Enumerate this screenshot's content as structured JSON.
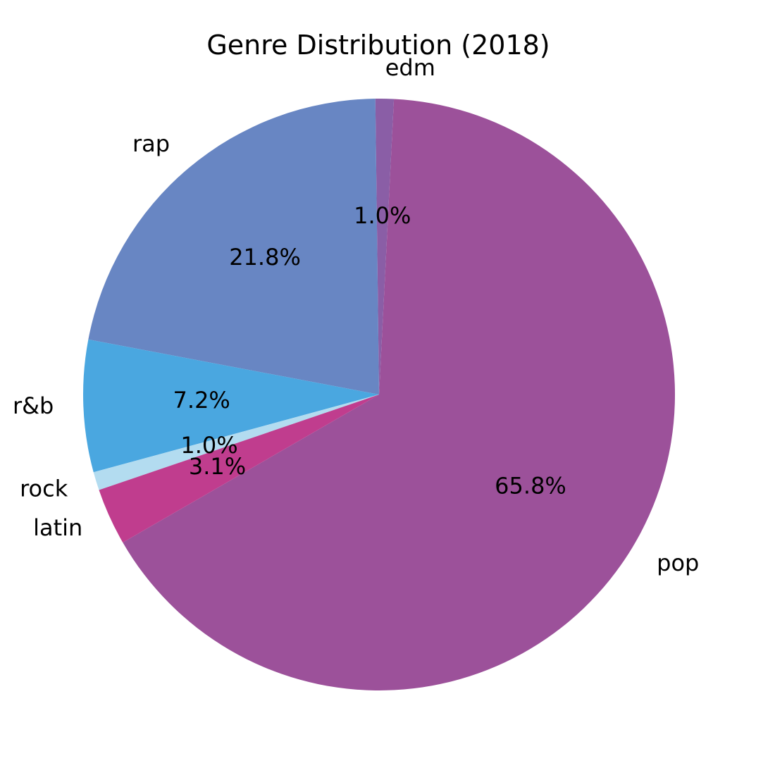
{
  "chart_data": {
    "type": "pie",
    "title": "Genre Distribution (2018)",
    "slices": [
      {
        "label": "pop",
        "value": 65.8,
        "pct_label": "65.8%",
        "color": "#9c519a"
      },
      {
        "label": "edm",
        "value": 1.0,
        "pct_label": "1.0%",
        "color": "#8a5ea6"
      },
      {
        "label": "rap",
        "value": 21.8,
        "pct_label": "21.8%",
        "color": "#6886c3"
      },
      {
        "label": "r&b",
        "value": 7.2,
        "pct_label": "7.2%",
        "color": "#4aa7e0"
      },
      {
        "label": "rock",
        "value": 1.0,
        "pct_label": "1.0%",
        "color": "#b3dcf0"
      },
      {
        "label": "latin",
        "value": 3.1,
        "pct_label": "3.1%",
        "color": "#c03d8e"
      }
    ]
  }
}
